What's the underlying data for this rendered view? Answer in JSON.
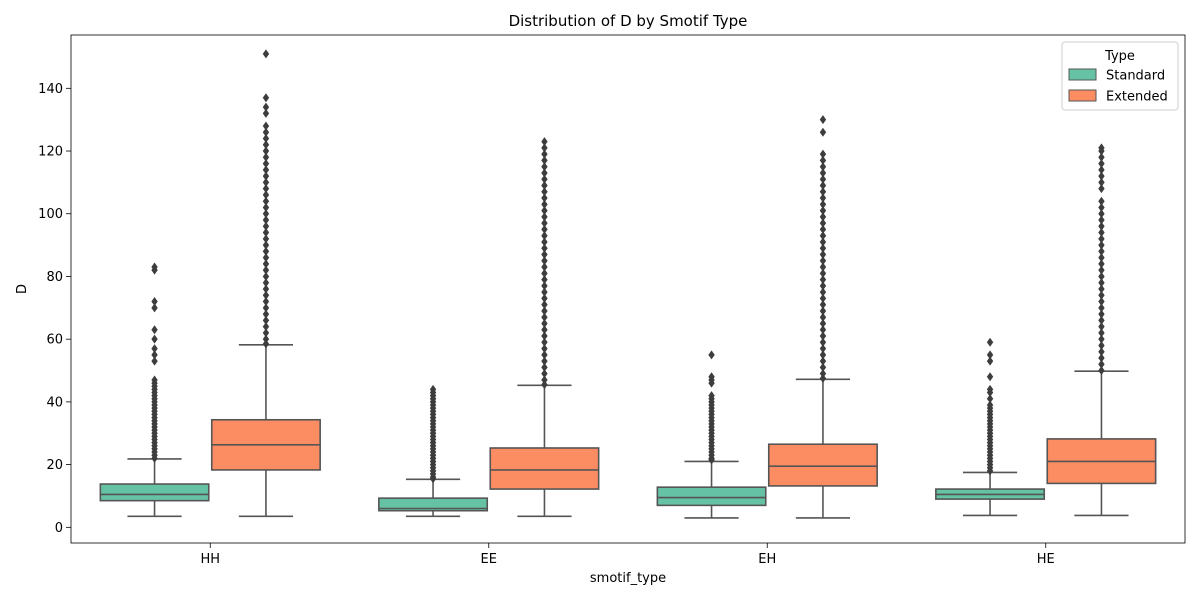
{
  "chart_data": {
    "type": "box",
    "title": "Distribution of D by Smotif Type",
    "xlabel": "smotif_type",
    "ylabel": "D",
    "categories": [
      "HH",
      "EE",
      "EH",
      "HE"
    ],
    "ylim": [
      -5,
      157
    ],
    "yticks": [
      0,
      20,
      40,
      60,
      80,
      100,
      120,
      140
    ],
    "grid": false,
    "legend": {
      "title": "Type",
      "position": "top-right"
    },
    "series": [
      {
        "name": "Standard",
        "color": "#66c2a5",
        "boxes": [
          {
            "category": "HH",
            "min": 3.5,
            "q1": 8.5,
            "median": 10.5,
            "q3": 13.8,
            "max": 21.8,
            "outliers": [
              22,
              23,
              24,
              25,
              26,
              27,
              28,
              29,
              30,
              31,
              32,
              33,
              34,
              35,
              36,
              37,
              38,
              39,
              40,
              41,
              42,
              43,
              44,
              45,
              46,
              47,
              53,
              55,
              57,
              60,
              63,
              70,
              72,
              82,
              83
            ]
          },
          {
            "category": "EE",
            "min": 3.5,
            "q1": 5.3,
            "median": 6.0,
            "q3": 9.3,
            "max": 15.3,
            "outliers": [
              15.5,
              16,
              17,
              18,
              19,
              20,
              21,
              22,
              23,
              24,
              25,
              26,
              27,
              28,
              29,
              30,
              31,
              32,
              33,
              34,
              35,
              36,
              37,
              38,
              39,
              40,
              41,
              42,
              43,
              44
            ]
          },
          {
            "category": "EH",
            "min": 3.0,
            "q1": 7.0,
            "median": 9.5,
            "q3": 12.8,
            "max": 21.0,
            "outliers": [
              21.5,
              22,
              23,
              24,
              25,
              26,
              27,
              28,
              29,
              30,
              31,
              32,
              33,
              34,
              35,
              36,
              37,
              38,
              39,
              40,
              41,
              42,
              46,
              47,
              48,
              55
            ]
          },
          {
            "category": "HE",
            "min": 3.8,
            "q1": 9.0,
            "median": 10.5,
            "q3": 12.2,
            "max": 17.5,
            "outliers": [
              18,
              19,
              20,
              21,
              22,
              23,
              24,
              25,
              26,
              27,
              28,
              29,
              30,
              31,
              32,
              33,
              34,
              35,
              36,
              37,
              38,
              39,
              41,
              43,
              44,
              48,
              53,
              55,
              59
            ]
          }
        ]
      },
      {
        "name": "Extended",
        "color": "#fc8d62",
        "boxes": [
          {
            "category": "HH",
            "min": 3.5,
            "q1": 18.3,
            "median": 26.3,
            "q3": 34.3,
            "max": 58.2,
            "outliers": [
              58.5,
              60,
              62,
              64,
              66,
              68,
              70,
              72,
              74,
              76,
              78,
              80,
              82,
              84,
              86,
              88,
              90,
              92,
              94,
              96,
              98,
              100,
              102,
              104,
              106,
              108,
              110,
              112,
              114,
              116,
              118,
              120,
              122,
              124,
              126,
              128,
              132,
              134,
              137,
              151
            ]
          },
          {
            "category": "EE",
            "min": 3.5,
            "q1": 12.2,
            "median": 18.3,
            "q3": 25.3,
            "max": 45.3,
            "outliers": [
              45.5,
              47,
              49,
              51,
              53,
              55,
              57,
              59,
              61,
              63,
              65,
              67,
              69,
              71,
              73,
              75,
              77,
              79,
              81,
              83,
              85,
              87,
              89,
              91,
              93,
              95,
              97,
              99,
              101,
              103,
              105,
              107,
              109,
              111,
              113,
              115,
              117,
              119,
              121,
              123
            ]
          },
          {
            "category": "EH",
            "min": 3.0,
            "q1": 13.2,
            "median": 19.5,
            "q3": 26.5,
            "max": 47.2,
            "outliers": [
              47.5,
              49,
              51,
              53,
              55,
              57,
              59,
              61,
              63,
              65,
              67,
              69,
              71,
              73,
              75,
              77,
              79,
              81,
              83,
              85,
              87,
              89,
              91,
              93,
              95,
              97,
              99,
              101,
              103,
              105,
              107,
              109,
              111,
              113,
              115,
              117,
              119,
              126,
              130
            ]
          },
          {
            "category": "HE",
            "min": 3.8,
            "q1": 14.0,
            "median": 21.0,
            "q3": 28.2,
            "max": 49.8,
            "outliers": [
              50,
              52,
              54,
              56,
              58,
              60,
              62,
              64,
              66,
              68,
              70,
              72,
              74,
              76,
              78,
              80,
              82,
              84,
              86,
              88,
              90,
              92,
              94,
              96,
              98,
              100,
              102,
              104,
              108,
              110,
              112,
              114,
              116,
              118,
              120,
              121
            ]
          }
        ]
      }
    ]
  }
}
